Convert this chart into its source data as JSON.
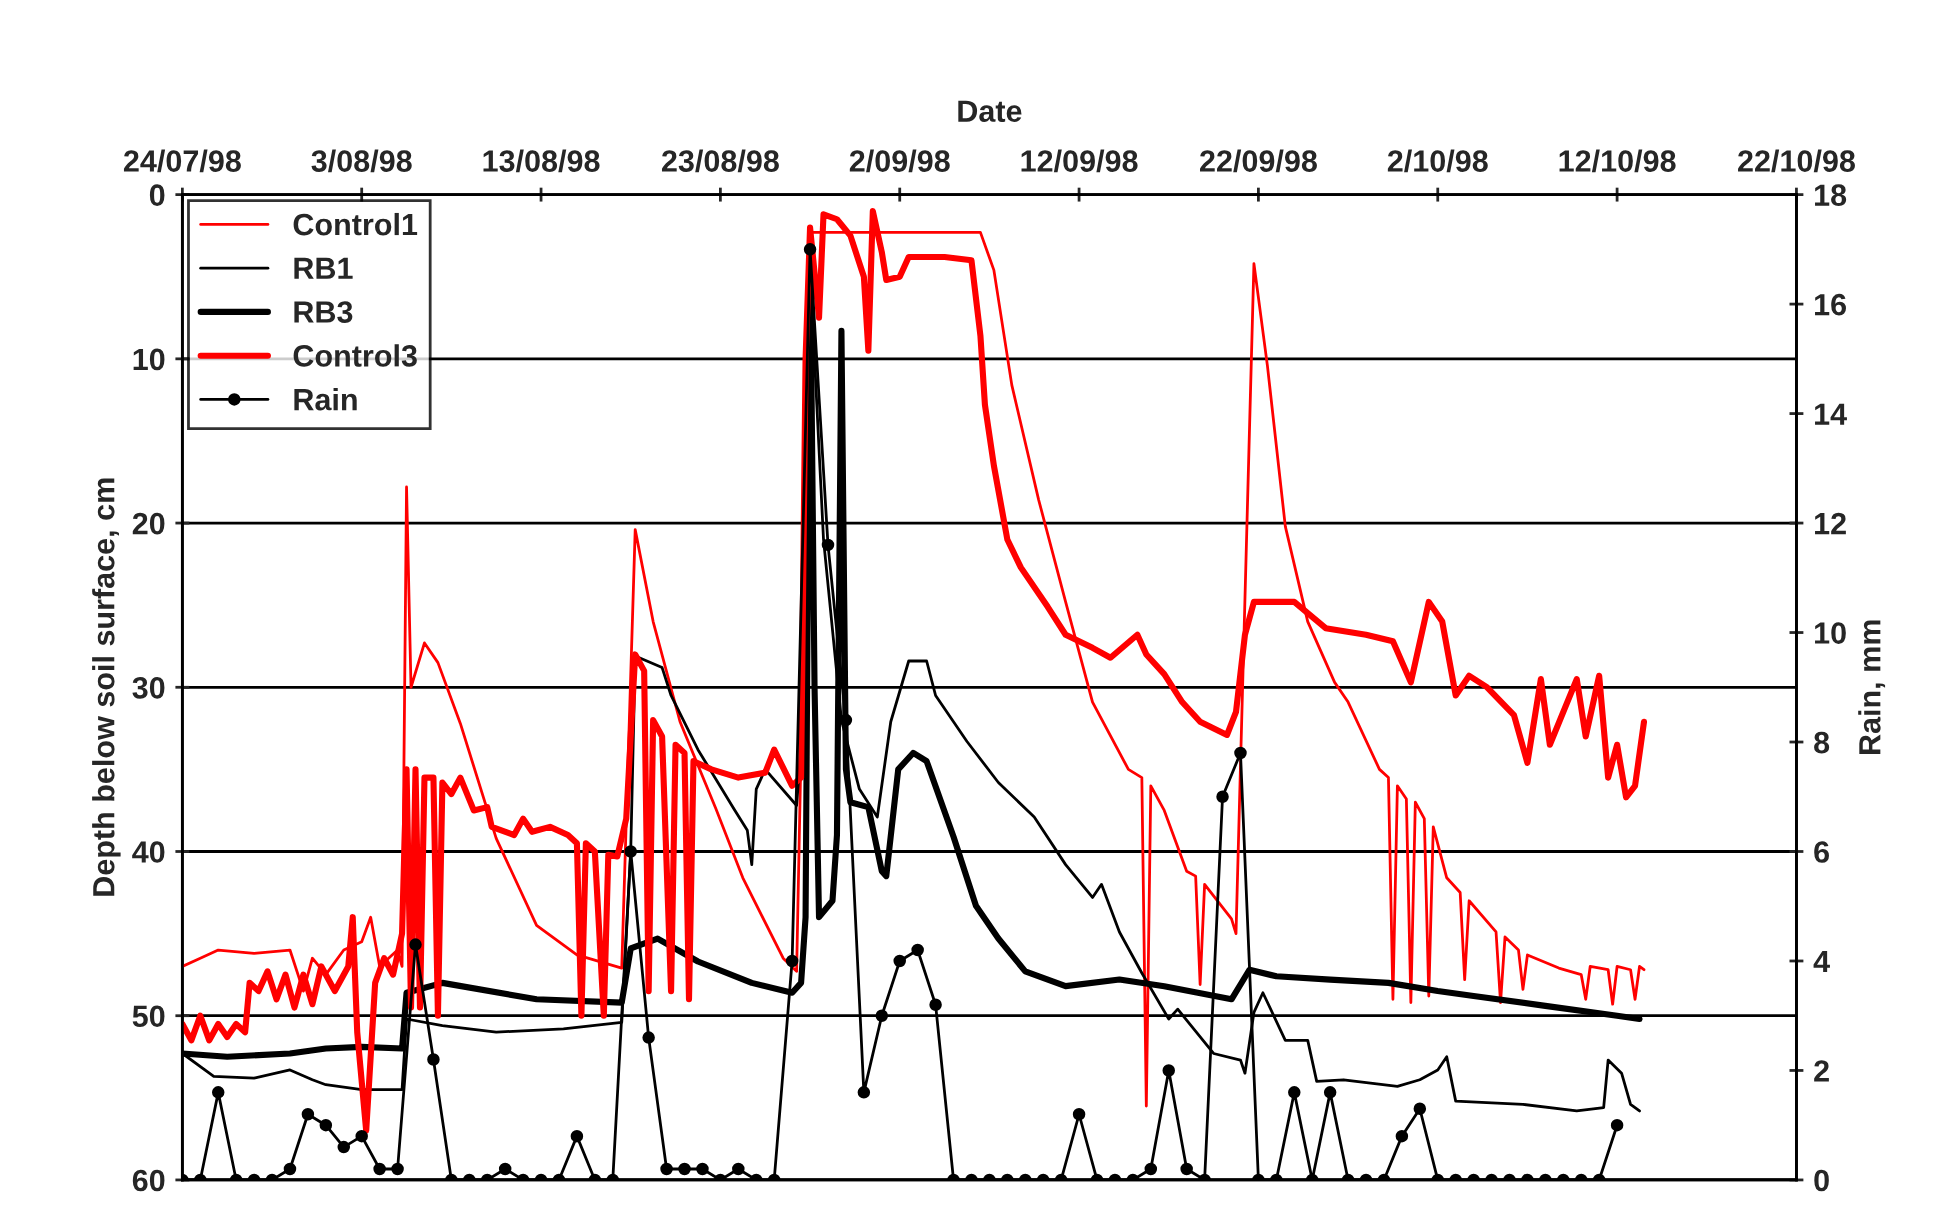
{
  "chart_data": {
    "type": "line",
    "xlabel": "Date",
    "ylabel": "Depth below soil surface, cm",
    "y2label": "Rain, mm",
    "xlim": [
      "1998-07-24",
      "1998-10-22"
    ],
    "xticks": [
      {
        "value": "1998-07-24",
        "label": "24/07/98"
      },
      {
        "value": "1998-08-03",
        "label": "3/08/98"
      },
      {
        "value": "1998-08-13",
        "label": "13/08/98"
      },
      {
        "value": "1998-08-23",
        "label": "23/08/98"
      },
      {
        "value": "1998-09-02",
        "label": "2/09/98"
      },
      {
        "value": "1998-09-12",
        "label": "12/09/98"
      },
      {
        "value": "1998-09-22",
        "label": "22/09/98"
      },
      {
        "value": "1998-10-02",
        "label": "2/10/98"
      },
      {
        "value": "1998-10-12",
        "label": "12/10/98"
      },
      {
        "value": "1998-10-22",
        "label": "22/10/98"
      }
    ],
    "ylim": [
      60,
      0
    ],
    "yticks": [
      0,
      10,
      20,
      30,
      40,
      50,
      60
    ],
    "y2lim": [
      0,
      18
    ],
    "y2ticks": [
      0,
      2,
      4,
      6,
      8,
      10,
      12,
      14,
      16,
      18
    ],
    "grid": "y",
    "legend": "top left",
    "series": [
      {
        "name": "Control1",
        "color": "#ff0000",
        "x": [
          "1998-07-24T00:00",
          "1998-07-25T00:00",
          "1998-07-26T00:00",
          "1998-07-28T00:00",
          "1998-07-30T00:00",
          "1998-07-30T18:00",
          "1998-07-31T06:00",
          "1998-08-01T00:00",
          "1998-08-02T00:00",
          "1998-08-03T00:00",
          "1998-08-03T12:00",
          "1998-08-04T00:00",
          "1998-08-05T00:00",
          "1998-08-05T06:00",
          "1998-08-05T12:00",
          "1998-08-05T18:00",
          "1998-08-06T12:00",
          "1998-08-07T06:00",
          "1998-08-08T12:00",
          "1998-08-10T12:00",
          "1998-08-12T18:00",
          "1998-08-15T00:00",
          "1998-08-17T12:00",
          "1998-08-18T06:00",
          "1998-08-19T06:00",
          "1998-08-20T18:00",
          "1998-08-22T18:00",
          "1998-08-24T06:00",
          "1998-08-26T12:00",
          "1998-08-27T06:00",
          "1998-08-27T18:00",
          "1998-08-28T00:00",
          "1998-09-06T12:00",
          "1998-09-07T06:00",
          "1998-09-08T06:00",
          "1998-09-09T18:00",
          "1998-09-11T06:00",
          "1998-09-12T18:00",
          "1998-09-14T18:00",
          "1998-09-15T12:00",
          "1998-09-15T18:00",
          "1998-09-16T00:00",
          "1998-09-16T18:00",
          "1998-09-18T00:00",
          "1998-09-18T12:00",
          "1998-09-18T18:00",
          "1998-09-19T00:00",
          "1998-09-20T12:00",
          "1998-09-20T18:00",
          "1998-09-21T18:00",
          "1998-09-22T12:00",
          "1998-09-23T12:00",
          "1998-09-24T18:00",
          "1998-09-26T06:00",
          "1998-09-27T00:00",
          "1998-09-28T18:00",
          "1998-09-29T06:00",
          "1998-09-29T12:00",
          "1998-09-29T18:00",
          "1998-09-30T06:00",
          "1998-09-30T12:00",
          "1998-09-30T18:00",
          "1998-10-01T06:00",
          "1998-10-01T12:00",
          "1998-10-01T18:00",
          "1998-10-02T12:00",
          "1998-10-03T06:00",
          "1998-10-03T12:00",
          "1998-10-03T18:00",
          "1998-10-05T06:00",
          "1998-10-05T12:00",
          "1998-10-05T18:00",
          "1998-10-06T12:00",
          "1998-10-06T18:00",
          "1998-10-07T00:00",
          "1998-10-08T18:00",
          "1998-10-10T00:00",
          "1998-10-10T06:00",
          "1998-10-10T12:00",
          "1998-10-11T12:00",
          "1998-10-11T18:00",
          "1998-10-12T00:00",
          "1998-10-12T18:00",
          "1998-10-13T00:00",
          "1998-10-13T06:00",
          "1998-10-13T12:00"
        ],
        "values": [
          47.0,
          46.5,
          46.0,
          46.2,
          46.0,
          48.5,
          46.5,
          47.5,
          46.0,
          45.5,
          44.0,
          47.0,
          46.0,
          47.0,
          17.8,
          30.0,
          27.3,
          28.5,
          32.2,
          39.2,
          44.5,
          46.3,
          47.1,
          20.4,
          26.0,
          32.1,
          37.4,
          41.6,
          46.5,
          47.3,
          20.0,
          2.3,
          2.3,
          4.6,
          11.6,
          18.6,
          24.8,
          30.9,
          35.0,
          35.5,
          55.5,
          36.0,
          37.5,
          41.2,
          41.5,
          48.1,
          42.0,
          44.1,
          45.0,
          4.2,
          10.4,
          20.2,
          26.0,
          29.7,
          30.9,
          35.0,
          35.5,
          49.0,
          36.0,
          36.8,
          49.2,
          37.0,
          38.0,
          48.8,
          38.5,
          41.6,
          42.5,
          47.8,
          43.0,
          44.9,
          49.2,
          45.2,
          46.0,
          48.4,
          46.3,
          47.1,
          47.5,
          49.0,
          47.0,
          47.2,
          49.3,
          47.0,
          47.2,
          49.0,
          47.0,
          47.2
        ]
      },
      {
        "name": "RB1",
        "color": "#000000",
        "x": [
          "1998-07-24T00:00",
          "1998-07-25T18:00",
          "1998-07-28T00:00",
          "1998-07-30T00:00",
          "1998-07-31T06:00",
          "1998-08-01T00:00",
          "1998-08-03T00:00",
          "1998-08-05T06:00",
          "1998-08-05T12:00",
          "1998-08-07T12:00",
          "1998-08-10T12:00",
          "1998-08-14T06:00",
          "1998-08-17T12:00",
          "1998-08-18T00:00",
          "1998-08-18T06:00",
          "1998-08-19T18:00",
          "1998-08-20T06:00",
          "1998-08-21T18:00",
          "1998-08-23T18:00",
          "1998-08-24T12:00",
          "1998-08-24T18:00",
          "1998-08-25T00:00",
          "1998-08-25T12:00",
          "1998-08-27T06:00",
          "1998-08-27T18:00",
          "1998-08-28T00:00",
          "1998-08-28T06:00",
          "1998-08-28T18:00",
          "1998-08-29T18:00",
          "1998-08-30T18:00",
          "1998-08-31T18:00",
          "1998-09-01T12:00",
          "1998-09-02T12:00",
          "1998-09-03T12:00",
          "1998-09-04T00:00",
          "1998-09-05T18:00",
          "1998-09-07T12:00",
          "1998-09-09T12:00",
          "1998-09-11T06:00",
          "1998-09-12T18:00",
          "1998-09-13T06:00",
          "1998-09-14T06:00",
          "1998-09-15T12:00",
          "1998-09-17T00:00",
          "1998-09-17T12:00",
          "1998-09-19T12:00",
          "1998-09-21T00:00",
          "1998-09-21T06:00",
          "1998-09-21T18:00",
          "1998-09-22T06:00",
          "1998-09-23T12:00",
          "1998-09-24T18:00",
          "1998-09-25T06:00",
          "1998-09-26T18:00",
          "1998-09-29T18:00",
          "1998-10-01T00:00",
          "1998-10-02T00:00",
          "1998-10-02T12:00",
          "1998-10-03T00:00",
          "1998-10-06T18:00",
          "1998-10-09T18:00",
          "1998-10-11T06:00",
          "1998-10-11T12:00",
          "1998-10-12T06:00",
          "1998-10-12T18:00",
          "1998-10-13T06:00"
        ],
        "values": [
          52.3,
          53.7,
          53.8,
          53.3,
          53.9,
          54.2,
          54.5,
          54.5,
          50.2,
          50.6,
          51.0,
          50.8,
          50.4,
          40.0,
          28.1,
          28.8,
          30.5,
          33.8,
          37.4,
          38.7,
          40.8,
          36.2,
          35.0,
          37.2,
          30.0,
          2.8,
          10.0,
          21.0,
          32.0,
          36.2,
          37.9,
          32.1,
          28.4,
          28.4,
          30.5,
          33.3,
          35.8,
          37.9,
          40.8,
          42.8,
          42.0,
          44.9,
          47.4,
          50.2,
          49.6,
          52.3,
          52.7,
          53.5,
          49.8,
          48.6,
          51.5,
          51.5,
          54.0,
          53.9,
          54.3,
          53.9,
          53.3,
          52.5,
          55.2,
          55.4,
          55.8,
          55.6,
          52.7,
          53.5,
          55.4,
          55.8
        ]
      },
      {
        "name": "RB3",
        "color": "#000000",
        "x": [
          "1998-07-24T00:00",
          "1998-07-26T12:00",
          "1998-07-30T00:00",
          "1998-08-01T00:00",
          "1998-08-03T00:00",
          "1998-08-05T06:00",
          "1998-08-05T12:00",
          "1998-08-07T12:00",
          "1998-08-12T18:00",
          "1998-08-17T12:00",
          "1998-08-18T00:00",
          "1998-08-19T12:00",
          "1998-08-21T18:00",
          "1998-08-24T18:00",
          "1998-08-27T00:00",
          "1998-08-27T12:00",
          "1998-08-27T18:00",
          "1998-08-28T00:00",
          "1998-08-28T06:00",
          "1998-08-28T12:00",
          "1998-08-29T06:00",
          "1998-08-29T12:00",
          "1998-08-29T18:00",
          "1998-08-30T00:00",
          "1998-08-30T06:00",
          "1998-08-31T06:00",
          "1998-09-01T00:00",
          "1998-09-01T06:00",
          "1998-09-01T22:00",
          "1998-09-02T18:00",
          "1998-09-03T12:00",
          "1998-09-05T00:00",
          "1998-09-06T06:00",
          "1998-09-07T12:00",
          "1998-09-09T00:00",
          "1998-09-11T06:00",
          "1998-09-14T06:00",
          "1998-09-16T18:00",
          "1998-09-20T12:00",
          "1998-09-21T12:00",
          "1998-09-23T00:00",
          "1998-09-26T00:00",
          "1998-09-29T06:00",
          "1998-10-02T00:00",
          "1998-10-04T00:00",
          "1998-10-08T00:00",
          "1998-10-12T00:00",
          "1998-10-13T06:00"
        ],
        "values": [
          52.3,
          52.5,
          52.3,
          52.0,
          51.9,
          52.0,
          48.6,
          48.0,
          49.0,
          49.2,
          45.9,
          45.3,
          46.7,
          48.0,
          48.6,
          48.0,
          44.0,
          3.0,
          30.0,
          44.0,
          43.0,
          39.0,
          8.3,
          35.0,
          37.0,
          37.3,
          41.2,
          41.5,
          35.0,
          34.0,
          34.5,
          39.1,
          43.3,
          45.3,
          47.3,
          48.2,
          47.8,
          48.2,
          49.0,
          47.2,
          47.6,
          47.8,
          48.0,
          48.5,
          48.8,
          49.4,
          50.0,
          50.2
        ]
      },
      {
        "name": "Control3",
        "color": "#ff0000",
        "x": [
          "1998-07-24T00:00",
          "1998-07-24T12:00",
          "1998-07-25T00:00",
          "1998-07-25T12:00",
          "1998-07-26T00:00",
          "1998-07-26T12:00",
          "1998-07-27T00:00",
          "1998-07-27T12:00",
          "1998-07-27T18:00",
          "1998-07-28T06:00",
          "1998-07-28T18:00",
          "1998-07-29T06:00",
          "1998-07-29T18:00",
          "1998-07-30T06:00",
          "1998-07-30T18:00",
          "1998-07-31T06:00",
          "1998-07-31T18:00",
          "1998-08-01T12:00",
          "1998-08-02T06:00",
          "1998-08-02T12:00",
          "1998-08-02T18:00",
          "1998-08-03T06:00",
          "1998-08-03T18:00",
          "1998-08-04T06:00",
          "1998-08-04T18:00",
          "1998-08-05T06:00",
          "1998-08-05T12:00",
          "1998-08-05T18:00",
          "1998-08-06T00:00",
          "1998-08-06T06:00",
          "1998-08-06T12:00",
          "1998-08-07T00:00",
          "1998-08-07T06:00",
          "1998-08-07T12:00",
          "1998-08-08T00:00",
          "1998-08-08T12:00",
          "1998-08-09T06:00",
          "1998-08-10T00:00",
          "1998-08-10T06:00",
          "1998-08-11T12:00",
          "1998-08-12T00:00",
          "1998-08-12T12:00",
          "1998-08-13T12:00",
          "1998-08-14T12:00",
          "1998-08-15T00:00",
          "1998-08-15T06:00",
          "1998-08-15T12:00",
          "1998-08-16T00:00",
          "1998-08-16T12:00",
          "1998-08-16T18:00",
          "1998-08-17T06:00",
          "1998-08-17T18:00",
          "1998-08-18T06:00",
          "1998-08-18T18:00",
          "1998-08-19T00:00",
          "1998-08-19T06:00",
          "1998-08-19T18:00",
          "1998-08-20T06:00",
          "1998-08-20T12:00",
          "1998-08-21T00:00",
          "1998-08-21T06:00",
          "1998-08-21T12:00",
          "1998-08-22T12:00",
          "1998-08-24T00:00",
          "1998-08-25T12:00",
          "1998-08-26T00:00",
          "1998-08-27T00:00",
          "1998-08-27T12:00",
          "1998-08-27T18:00",
          "1998-08-28T00:00",
          "1998-08-28T12:00",
          "1998-08-28T18:00",
          "1998-08-29T12:00",
          "1998-08-30T06:00",
          "1998-08-31T00:00",
          "1998-08-31T06:00",
          "1998-08-31T12:00",
          "1998-09-01T00:00",
          "1998-09-01T06:00",
          "1998-09-02T00:00",
          "1998-09-02T12:00",
          "1998-09-03T00:00",
          "1998-09-04T12:00",
          "1998-09-06T00:00",
          "1998-09-06T12:00",
          "1998-09-06T18:00",
          "1998-09-07T06:00",
          "1998-09-08T00:00",
          "1998-09-08T18:00",
          "1998-09-10T06:00",
          "1998-09-11T06:00",
          "1998-09-12T18:00",
          "1998-09-13T18:00",
          "1998-09-15T06:00",
          "1998-09-15T18:00",
          "1998-09-16T18:00",
          "1998-09-17T18:00",
          "1998-09-18T18:00",
          "1998-09-20T06:00",
          "1998-09-20T18:00",
          "1998-09-21T06:00",
          "1998-09-21T18:00",
          "1998-09-24T00:00",
          "1998-09-25T18:00",
          "1998-09-28T00:00",
          "1998-09-29T12:00",
          "1998-09-30T12:00",
          "1998-10-01T12:00",
          "1998-10-02T06:00",
          "1998-10-03T00:00",
          "1998-10-03T18:00",
          "1998-10-04T18:00",
          "1998-10-06T06:00",
          "1998-10-07T00:00",
          "1998-10-07T18:00",
          "1998-10-08T06:00",
          "1998-10-09T18:00",
          "1998-10-10T06:00",
          "1998-10-11T00:00",
          "1998-10-11T12:00",
          "1998-10-12T00:00",
          "1998-10-12T12:00",
          "1998-10-13T00:00",
          "1998-10-13T12:00"
        ],
        "values": [
          50.5,
          51.5,
          50.0,
          51.5,
          50.5,
          51.3,
          50.5,
          51.0,
          48.0,
          48.5,
          47.3,
          49.0,
          47.5,
          49.5,
          47.5,
          49.3,
          47.0,
          48.5,
          47.0,
          44.0,
          51.0,
          57.0,
          48.0,
          46.5,
          47.5,
          45.0,
          35.0,
          49.5,
          35.0,
          49.5,
          35.5,
          35.5,
          50.0,
          35.8,
          36.5,
          35.5,
          37.5,
          37.3,
          38.5,
          39.0,
          38.0,
          38.8,
          38.5,
          39.0,
          39.5,
          50.0,
          39.5,
          40.0,
          50.0,
          40.2,
          40.3,
          38.0,
          28.0,
          29.0,
          48.5,
          32.0,
          33.0,
          48.5,
          33.5,
          34.0,
          49.0,
          34.5,
          35.0,
          35.5,
          35.2,
          33.8,
          36.0,
          35.5,
          10.0,
          2.0,
          7.5,
          1.2,
          1.5,
          2.5,
          5.0,
          9.5,
          1.0,
          3.5,
          5.2,
          5.0,
          3.8,
          3.8,
          3.8,
          4.0,
          8.6,
          12.8,
          16.5,
          21.0,
          22.7,
          25.1,
          26.8,
          27.6,
          28.2,
          26.8,
          28.0,
          29.2,
          30.9,
          32.1,
          32.9,
          31.5,
          26.8,
          24.8,
          24.8,
          26.4,
          26.8,
          27.2,
          29.7,
          24.8,
          26.0,
          30.5,
          29.3,
          30.0,
          31.7,
          34.6,
          29.5,
          33.5,
          29.5,
          33.0,
          29.3,
          35.5,
          33.5,
          36.7,
          36.0,
          32.1
        ]
      },
      {
        "name": "Rain",
        "color": "#000000",
        "axis": "y2",
        "marker": "circle",
        "x": [
          "1998-07-24",
          "1998-07-25",
          "1998-07-26",
          "1998-07-27",
          "1998-07-28",
          "1998-07-29",
          "1998-07-30",
          "1998-07-31",
          "1998-08-01",
          "1998-08-02",
          "1998-08-03",
          "1998-08-04",
          "1998-08-05",
          "1998-08-06",
          "1998-08-07",
          "1998-08-08",
          "1998-08-09",
          "1998-08-10",
          "1998-08-11",
          "1998-08-12",
          "1998-08-13",
          "1998-08-14",
          "1998-08-15",
          "1998-08-16",
          "1998-08-17",
          "1998-08-18",
          "1998-08-19",
          "1998-08-20",
          "1998-08-21",
          "1998-08-22",
          "1998-08-23",
          "1998-08-24",
          "1998-08-25",
          "1998-08-26",
          "1998-08-27",
          "1998-08-28",
          "1998-08-29",
          "1998-08-30",
          "1998-08-31",
          "1998-09-01",
          "1998-09-02",
          "1998-09-03",
          "1998-09-04",
          "1998-09-05",
          "1998-09-06",
          "1998-09-07",
          "1998-09-08",
          "1998-09-09",
          "1998-09-10",
          "1998-09-11",
          "1998-09-12",
          "1998-09-13",
          "1998-09-14",
          "1998-09-15",
          "1998-09-16",
          "1998-09-17",
          "1998-09-18",
          "1998-09-19",
          "1998-09-20",
          "1998-09-21",
          "1998-09-22",
          "1998-09-23",
          "1998-09-24",
          "1998-09-25",
          "1998-09-26",
          "1998-09-27",
          "1998-09-28",
          "1998-09-29",
          "1998-09-30",
          "1998-10-01",
          "1998-10-02",
          "1998-10-03",
          "1998-10-04",
          "1998-10-05",
          "1998-10-06",
          "1998-10-07",
          "1998-10-08",
          "1998-10-09",
          "1998-10-10",
          "1998-10-11",
          "1998-10-12"
        ],
        "values": [
          0,
          0,
          1.6,
          0,
          0,
          0,
          0.2,
          1.2,
          1.0,
          0.6,
          0.8,
          0.2,
          0.2,
          4.3,
          2.2,
          0,
          0,
          0,
          0.2,
          0,
          0,
          0,
          0.8,
          0,
          0,
          6.0,
          2.6,
          0.2,
          0.2,
          0.2,
          0,
          0.2,
          0,
          0,
          4.0,
          17.0,
          11.6,
          8.4,
          1.6,
          3.0,
          4.0,
          4.2,
          3.2,
          0,
          0,
          0,
          0,
          0,
          0,
          0,
          1.2,
          0,
          0,
          0,
          0.2,
          2.0,
          0.2,
          0,
          7.0,
          7.8,
          0,
          0,
          1.6,
          0,
          1.6,
          0,
          0,
          0,
          0.8,
          1.3,
          0,
          0,
          0,
          0,
          0,
          0,
          0,
          0,
          0,
          0,
          1.0
        ]
      }
    ]
  }
}
